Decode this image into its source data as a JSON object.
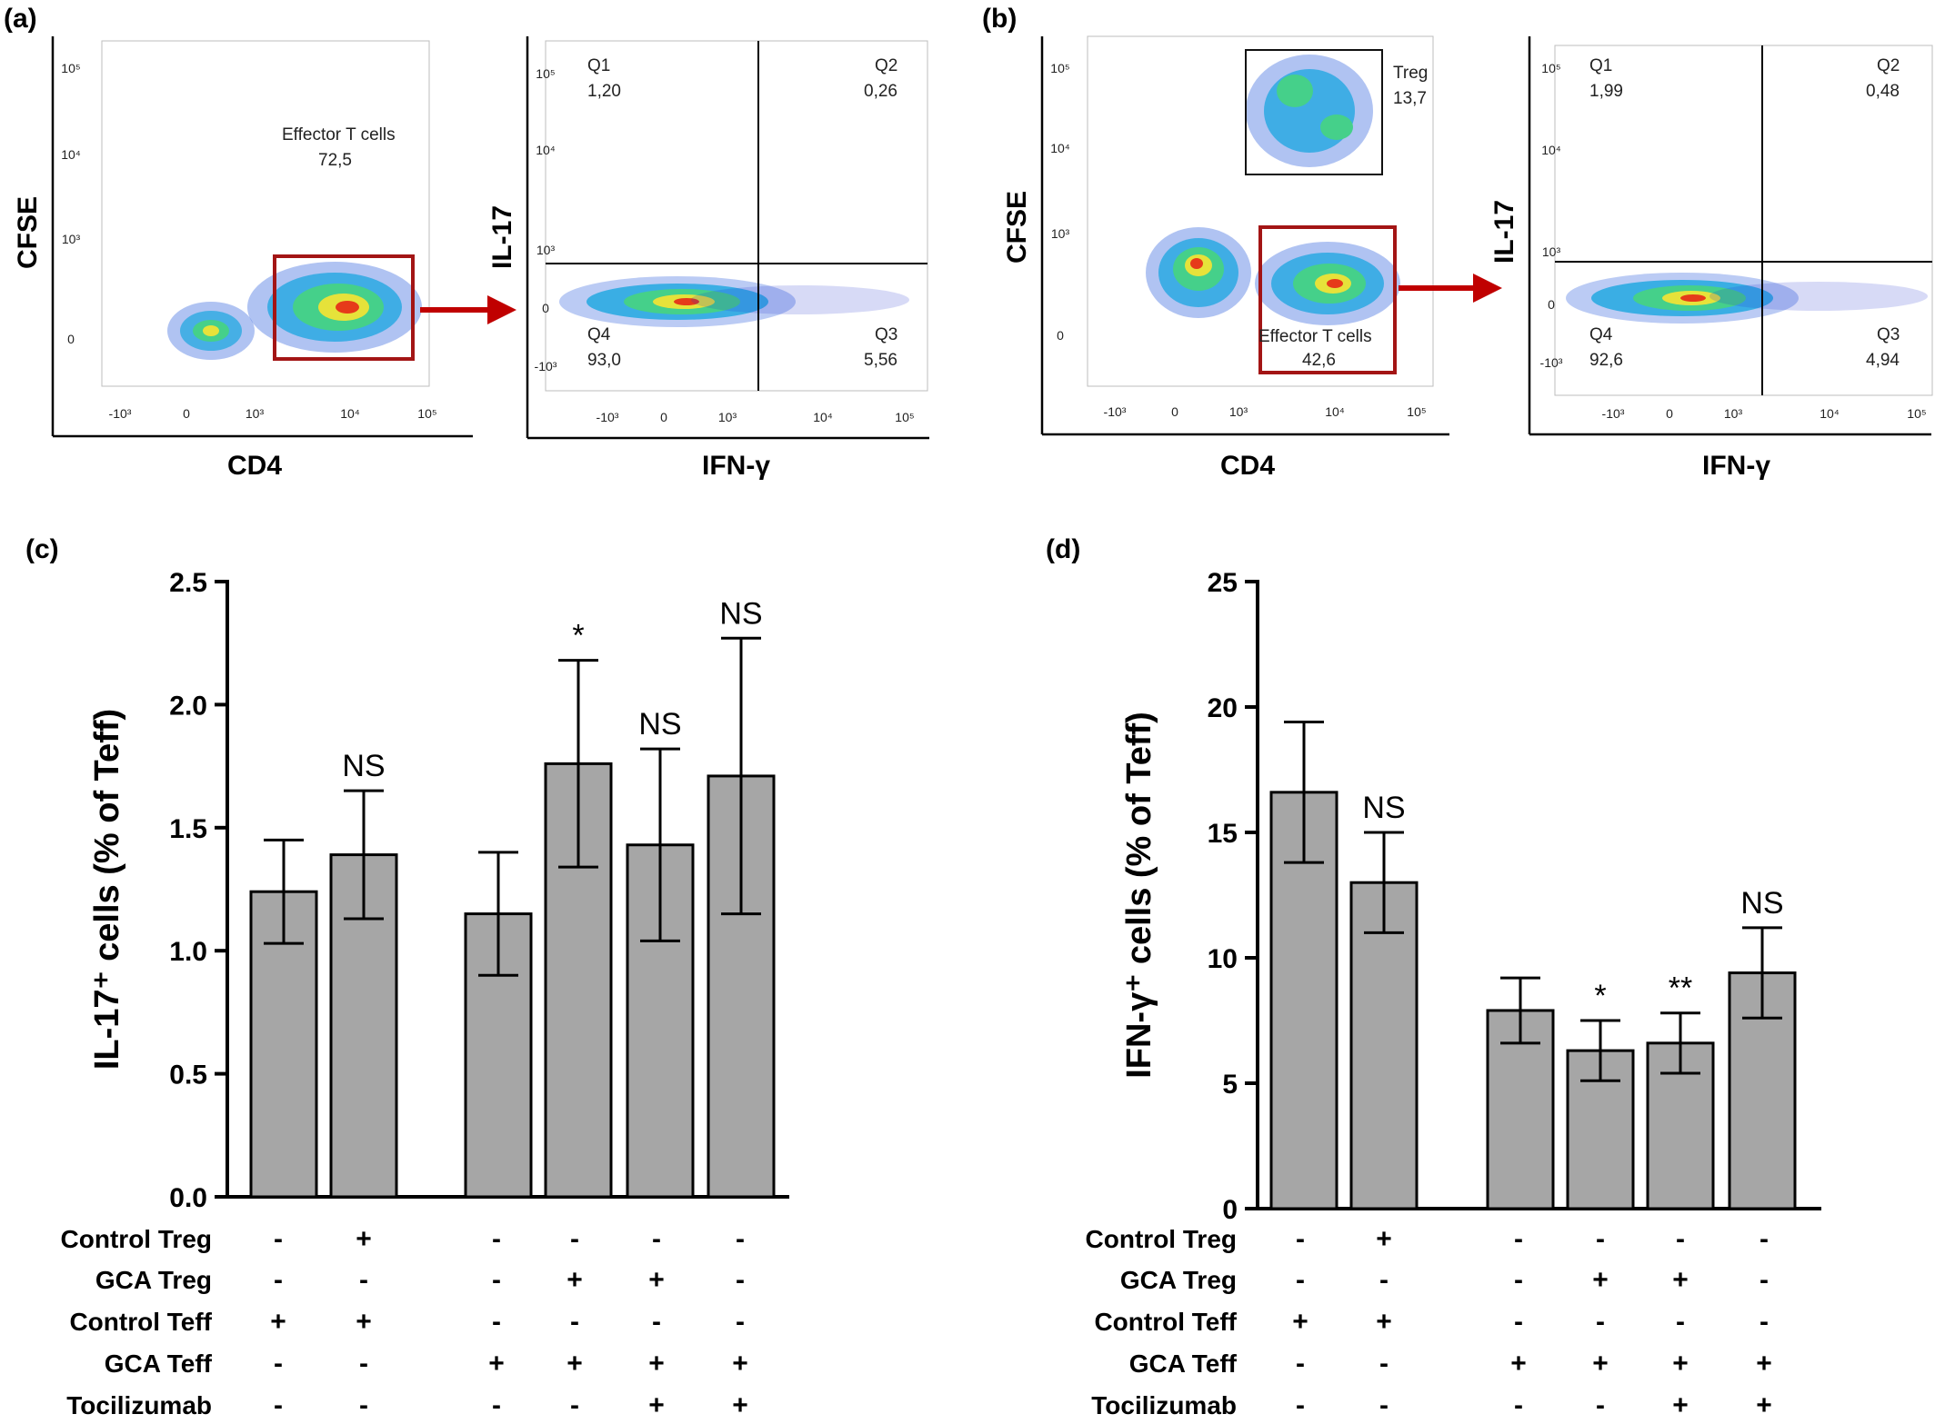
{
  "panel_labels": [
    "(a)",
    "(b)",
    "(c)",
    "(d)"
  ],
  "flow": {
    "x_tick_labels": [
      "-10³",
      "0",
      "10³",
      "10⁴",
      "10⁵"
    ],
    "y_tick_labels": [
      "-10³",
      "0",
      "10³",
      "10⁴",
      "10⁵"
    ],
    "a": {
      "gate_plot": {
        "xlabel": "CD4",
        "ylabel": "CFSE",
        "gate_name": "Effector T cells",
        "gate_value": "72,5"
      },
      "quad_plot": {
        "xlabel": "IFN-γ",
        "ylabel": "IL-17",
        "quadrants": {
          "Q1": "1,20",
          "Q2": "0,26",
          "Q3": "5,56",
          "Q4": "93,0"
        }
      }
    },
    "b": {
      "gate_plot": {
        "xlabel": "CD4",
        "ylabel": "CFSE",
        "gate_name": "Effector T cells",
        "gate_value": "42,6",
        "treg_gate_name": "Treg",
        "treg_gate_value": "13,7"
      },
      "quad_plot": {
        "xlabel": "IFN-γ",
        "ylabel": "IL-17",
        "quadrants": {
          "Q1": "1,99",
          "Q2": "0,48",
          "Q3": "4,94",
          "Q4": "92,6"
        }
      }
    },
    "quadrant_names": [
      "Q1",
      "Q2",
      "Q3",
      "Q4"
    ],
    "colors": {
      "gate_red": "#a31515",
      "arrow_red": "#c00000",
      "dot_blue": "#2233cc"
    }
  },
  "conditions": {
    "rows": [
      "Control Treg",
      "GCA Treg",
      "Control Teff",
      "GCA Teff",
      "Tocilizumab"
    ],
    "signs": [
      [
        "-",
        "+",
        "-",
        "-",
        "-",
        "-"
      ],
      [
        "-",
        "-",
        "-",
        "+",
        "+",
        "-"
      ],
      [
        "+",
        "+",
        "-",
        "-",
        "-",
        "-"
      ],
      [
        "-",
        "-",
        "+",
        "+",
        "+",
        "+"
      ],
      [
        "-",
        "-",
        "-",
        "-",
        "+",
        "+"
      ]
    ]
  },
  "chart_data": [
    {
      "type": "bar",
      "panel": "(c)",
      "ylabel": "IL-17⁺ cells (% of Teff)",
      "ylim": [
        0,
        2.5
      ],
      "yticks": [
        "0.0",
        "0.5",
        "1.0",
        "1.5",
        "2.0",
        "2.5"
      ],
      "values": [
        1.24,
        1.39,
        1.15,
        1.76,
        1.43,
        1.71
      ],
      "errors": [
        0.21,
        0.26,
        0.25,
        0.42,
        0.39,
        0.56
      ],
      "significance": [
        "",
        "NS",
        "",
        "*",
        "NS",
        "NS"
      ],
      "bar_color": "#a6a6a6"
    },
    {
      "type": "bar",
      "panel": "(d)",
      "ylabel": "IFN-γ⁺ cells (% of Teff)",
      "ylim": [
        0,
        25
      ],
      "yticks": [
        "0",
        "5",
        "10",
        "15",
        "20",
        "25"
      ],
      "values": [
        16.6,
        13.0,
        7.9,
        6.3,
        6.6,
        9.4
      ],
      "errors": [
        2.8,
        2.0,
        1.3,
        1.2,
        1.2,
        1.8
      ],
      "significance": [
        "",
        "NS",
        "",
        "*",
        "**",
        "NS"
      ],
      "bar_color": "#a6a6a6"
    }
  ]
}
